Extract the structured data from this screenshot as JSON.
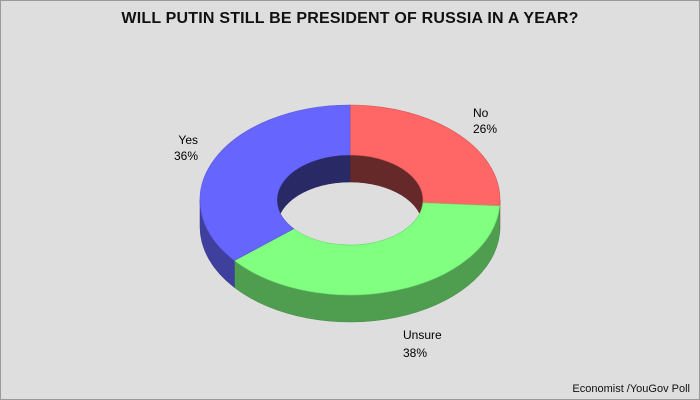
{
  "chart_data": {
    "type": "pie",
    "title": "WILL PUTIN STILL BE PRESIDENT OF RUSSIA IN A YEAR?",
    "style": "3d-donut",
    "categories": [
      "No",
      "Unsure",
      "Yes"
    ],
    "values": [
      26,
      38,
      36
    ],
    "value_labels": [
      "26%",
      "38%",
      "36%"
    ],
    "colors": [
      "#ff6666",
      "#80ff80",
      "#6666ff"
    ],
    "source": "Economist /YouGov Poll"
  },
  "colors": {
    "background": "#dedede",
    "border": "#9a9a9a"
  }
}
